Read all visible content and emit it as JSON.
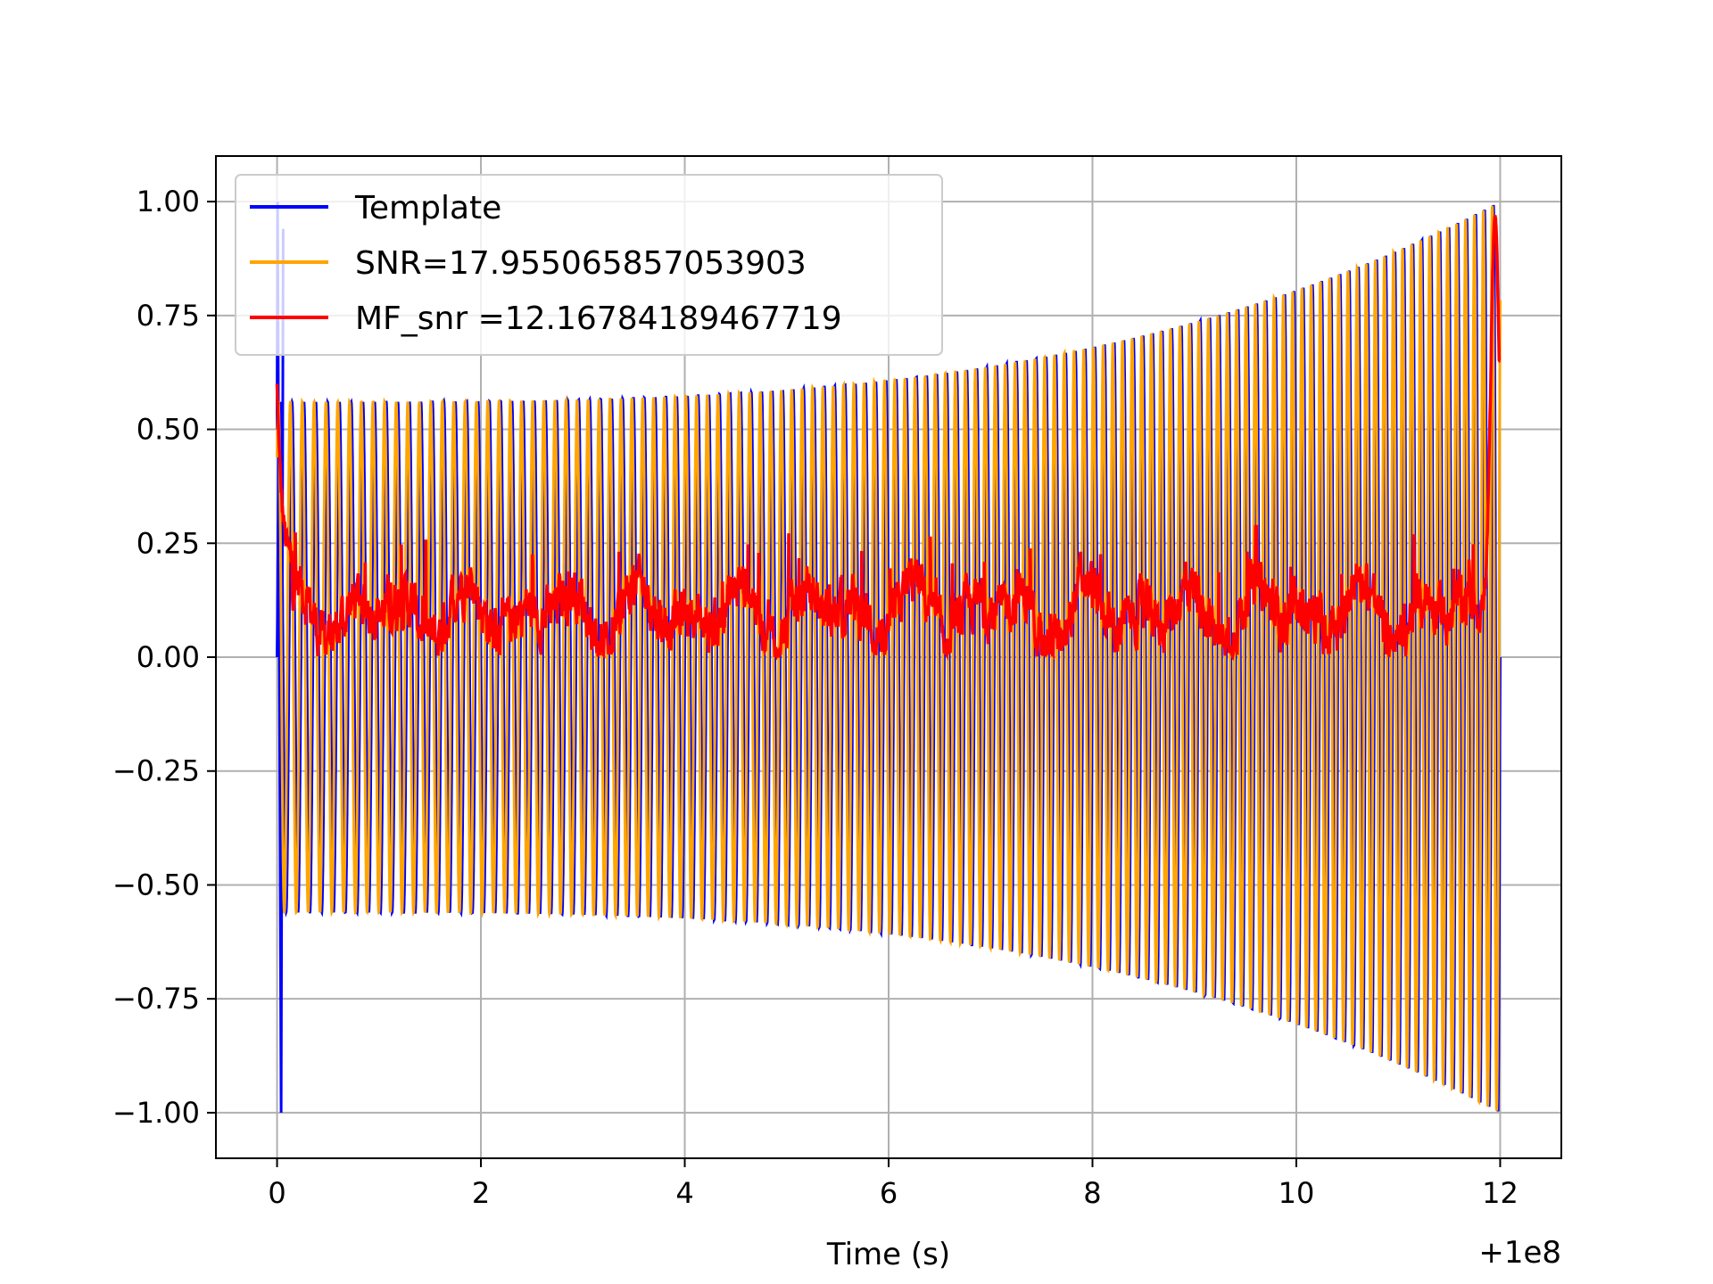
{
  "chart_data": {
    "type": "line",
    "title": "",
    "xlabel": "Time (s)",
    "ylabel": "",
    "x_offset_label": "+1e8",
    "xlim": [
      -0.6,
      12.6
    ],
    "ylim": [
      -1.1,
      1.1
    ],
    "x_ticks": [
      0,
      2,
      4,
      6,
      8,
      10,
      12
    ],
    "x_tick_labels": [
      "0",
      "2",
      "4",
      "6",
      "8",
      "10",
      "12"
    ],
    "y_ticks": [
      -1.0,
      -0.75,
      -0.5,
      -0.25,
      0.0,
      0.25,
      0.5,
      0.75,
      1.0
    ],
    "y_tick_labels": [
      "−1.00",
      "−0.75",
      "−0.50",
      "−0.25",
      "0.00",
      "0.25",
      "0.50",
      "0.75",
      "1.00"
    ],
    "grid": true,
    "legend_position": "upper-left",
    "series": [
      {
        "name": "Template",
        "color": "#0000ff",
        "description": "Oscillating chirp, amplitude ~0.56 at t=0 rising to 1.0 at t=12; spike to -1.0 and 0.94 near t=0",
        "x_start": 0,
        "x_end": 12,
        "amplitude_start": 0.56,
        "amplitude_end": 1.0,
        "cycles": 120
      },
      {
        "name": "SNR=17.955065857053903",
        "color": "#ffa500",
        "description": "Oscillating chirp overlapping Template with slight phase offset, amplitude ~0.56 rising to 1.0",
        "x_start": 0,
        "x_end": 12,
        "amplitude_start": 0.56,
        "amplitude_end": 1.0,
        "cycles": 120
      },
      {
        "name": "MF_snr =12.16784189467719",
        "color": "#ff0000",
        "description": "Noisy matched-filter output centered ~0.1, between 0.0 and ~0.35; spike to ~0.6 at t=0 and peak ~0.97 at t=11.95",
        "x_start": 0,
        "x_end": 12,
        "baseline": 0.1,
        "start_peak": 0.6,
        "end_peak": 0.97
      }
    ]
  }
}
